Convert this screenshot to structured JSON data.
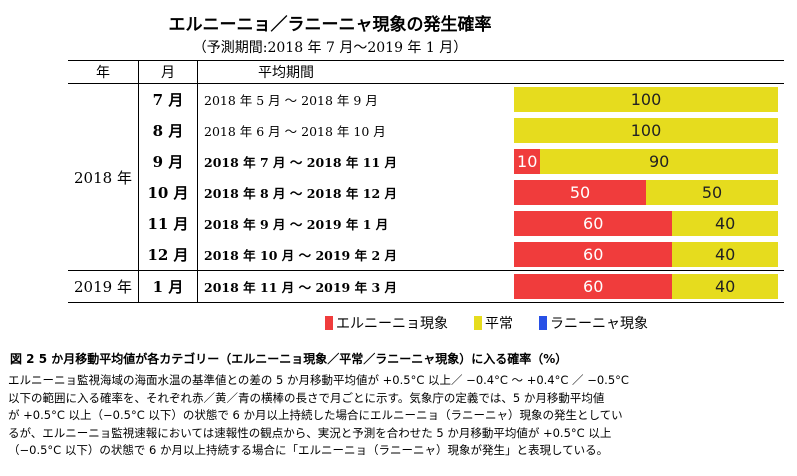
{
  "title": "エルニーニョ／ラニーニャ現象の発生確率",
  "subtitle": "（予測期間:2018 年 7 月〜2019 年 1 月）",
  "headers": {
    "year": "年",
    "month": "月",
    "period": "平均期間"
  },
  "years": [
    "2018 年",
    "2019 年"
  ],
  "colors": {
    "elnino": "#f03c3c",
    "normal": "#e6dc1e",
    "lanina": "#2850e6"
  },
  "rows": [
    {
      "month": "7 月",
      "period": "2018 年  5 月  〜 2018 年  9 月",
      "elnino": "",
      "normal": "100",
      "elnino_pct": 0,
      "normal_pct": 100,
      "bold": false
    },
    {
      "month": "8 月",
      "period": "2018 年  6 月  〜 2018 年  10 月",
      "elnino": "",
      "normal": "100",
      "elnino_pct": 0,
      "normal_pct": 100,
      "bold": false
    },
    {
      "month": "9 月",
      "period": "2018 年  7 月  〜 2018 年  11 月",
      "elnino": "10",
      "normal": "90",
      "elnino_pct": 10,
      "normal_pct": 90,
      "bold": true
    },
    {
      "month": "10 月",
      "period": "2018 年  8 月  〜 2018 年  12 月",
      "elnino": "50",
      "normal": "50",
      "elnino_pct": 50,
      "normal_pct": 50,
      "bold": true
    },
    {
      "month": "11 月",
      "period": "2018 年  9 月  〜 2019 年  1 月",
      "elnino": "60",
      "normal": "40",
      "elnino_pct": 60,
      "normal_pct": 40,
      "bold": true
    },
    {
      "month": "12 月",
      "period": "2018 年 10 月  〜 2019 年  2 月",
      "elnino": "60",
      "normal": "40",
      "elnino_pct": 60,
      "normal_pct": 40,
      "bold": true
    },
    {
      "month": "1 月",
      "period": "2018 年 11 月  〜 2019 年  3 月",
      "elnino": "60",
      "normal": "40",
      "elnino_pct": 60,
      "normal_pct": 40,
      "bold": true
    }
  ],
  "legend": {
    "elnino": "エルニーニョ現象",
    "normal": "平常",
    "lanina": "ラニーニャ現象"
  },
  "caption": "図 2  5 か月移動平均値が各カテゴリー（エルニーニョ現象／平常／ラニーニャ現象）に入る確率（%）",
  "body": [
    "エルニーニョ監視海域の海面水温の基準値との差の 5 か月移動平均値が +0.5°C 以上／ −0.4°C 〜 +0.4°C ／ −0.5°C",
    "以下の範囲に入る確率を、それぞれ赤／黄／青の横棒の長さで月ごとに示す。気象庁の定義では、5 か月移動平均値",
    "が +0.5°C 以上（−0.5°C 以下）の状態で 6 か月以上持続した場合にエルニーニョ（ラニーニャ）現象の発生としてい",
    "るが、エルニーニョ監視速報においては速報性の観点から、実況と予測を合わせた 5 か月移動平均値が +0.5°C 以上",
    "（−0.5°C 以下）の状態で 6 か月以上持続する場合に「エルニーニョ（ラニーニャ）現象が発生」と表現している。"
  ]
}
